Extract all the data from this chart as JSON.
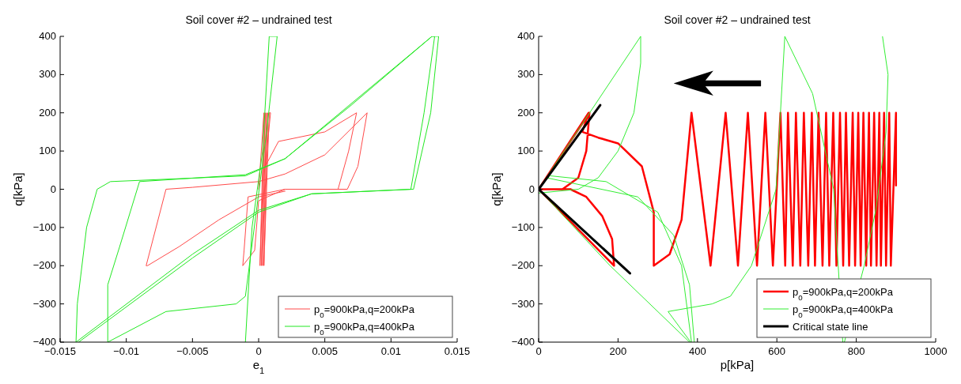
{
  "chart_data": [
    {
      "type": "line",
      "title": "Soil cover #2 – undrained test",
      "xlabel": "e$_{1}$",
      "ylabel": "q[kPa]",
      "xlim": [
        -0.015,
        0.015
      ],
      "ylim": [
        -400,
        400
      ],
      "xticks": [
        {
          "value": -0.015,
          "label": "−0.015"
        },
        {
          "value": -0.01,
          "label": "−0.01"
        },
        {
          "value": -0.005,
          "label": "−0.005"
        },
        0,
        0.005,
        0.01,
        0.015
      ],
      "yticks": [
        {
          "value": -400,
          "label": "−400"
        },
        {
          "value": -300,
          "label": "−300"
        },
        {
          "value": -200,
          "label": "−200"
        },
        {
          "value": -100,
          "label": "−100"
        },
        0,
        100,
        200,
        300,
        400
      ],
      "legend": "bottom right",
      "series": [
        {
          "name": "p$_{0}$=900kPa,q=200kPa",
          "color": "#ff4a4a",
          "x": [
            0,
            0.0004,
            0.0001,
            0.0005,
            0.0002,
            0.0006,
            0.0003,
            0.0007,
            0.0004,
            0.0008,
            0.0009,
            0.0005,
            0.0015,
            0.005,
            0.0074,
            0.0068,
            0.006,
            0.002,
            -0.0008,
            -0.0011,
            -0.0012,
            -0.0003,
            0,
            0.002,
            0.0067,
            0.0075,
            0.0082,
            0.005,
            0.002,
            0,
            -0.005,
            -0.007,
            -0.0085,
            -0.0084,
            -0.006,
            -0.003,
            0,
            0.002
          ],
          "values": [
            0,
            200,
            -200,
            200,
            -200,
            200,
            -200,
            200,
            -200,
            200,
            200,
            60,
            125,
            150,
            200,
            100,
            0,
            0,
            -20,
            -160,
            -200,
            -160,
            -30,
            0,
            0,
            60,
            200,
            90,
            40,
            20,
            5,
            0,
            -200,
            -200,
            -150,
            -80,
            -20,
            -5
          ]
        },
        {
          "name": "p$_{0}$=900kPa,q=400kPa",
          "color": "#22e822",
          "x": [
            -0.001,
            -0.0005,
            0.0003,
            0.0008,
            0.0014,
            0.0006,
            -0.001,
            -0.0017,
            -0.007,
            -0.0114,
            -0.0114,
            -0.0105,
            -0.009,
            -0.001,
            0.002,
            0.007,
            0.0131,
            0.0133,
            0.0125,
            0.0115,
            0.004,
            0,
            -0.005,
            -0.0138,
            -0.0137,
            -0.013,
            -0.0122,
            -0.0112,
            -0.001,
            0.002,
            0.0131,
            0.0136,
            0.013,
            0.0117,
            0.004,
            0,
            -0.005,
            -0.0136
          ],
          "values": [
            -400,
            -100,
            100,
            400,
            400,
            150,
            -280,
            -300,
            -320,
            -400,
            -250,
            -150,
            20,
            38,
            80,
            220,
            400,
            400,
            200,
            0,
            -12,
            -55,
            -170,
            -400,
            -300,
            -100,
            0,
            20,
            35,
            80,
            400,
            400,
            200,
            0,
            -12,
            -60,
            -180,
            -400
          ]
        }
      ]
    },
    {
      "type": "line",
      "title": "Soil cover #2 – undrained test",
      "xlabel": "p[kPa]",
      "ylabel": "q[kPa]",
      "xlim": [
        0,
        1000
      ],
      "ylim": [
        -400,
        400
      ],
      "xticks": [
        0,
        200,
        400,
        600,
        800,
        1000
      ],
      "yticks": [
        {
          "value": -400,
          "label": "−400"
        },
        {
          "value": -300,
          "label": "−300"
        },
        {
          "value": -200,
          "label": "−200"
        },
        {
          "value": -100,
          "label": "−100"
        },
        0,
        100,
        200,
        300,
        400
      ],
      "legend": "bottom right",
      "series": [
        {
          "name": "p$_{0}$=900kPa,q=200kPa",
          "color": "#ff0000",
          "x": [
            900,
            900,
            887,
            883,
            875,
            870,
            862,
            858,
            851,
            845,
            837,
            832,
            825,
            818,
            811,
            805,
            797,
            791,
            782,
            774,
            767,
            759,
            750,
            742,
            732,
            724,
            715,
            705,
            696,
            688,
            679,
            668,
            659,
            648,
            640,
            628,
            621,
            609,
            590,
            571,
            550,
            527,
            502,
            471,
            433,
            385,
            360,
            330,
            290,
            290,
            260,
            200,
            150,
            110,
            126,
            0,
            190,
            185,
            160,
            120,
            80,
            0,
            60,
            100,
            120,
            128,
            0
          ],
          "values": [
            10,
            200,
            -200,
            200,
            -200,
            200,
            -200,
            200,
            -200,
            200,
            -200,
            200,
            -200,
            200,
            -200,
            200,
            -200,
            200,
            -200,
            200,
            -200,
            200,
            -200,
            200,
            -200,
            200,
            -200,
            200,
            -200,
            200,
            -200,
            200,
            -200,
            200,
            -200,
            200,
            -200,
            200,
            -200,
            200,
            -200,
            200,
            -200,
            200,
            -200,
            200,
            -80,
            -170,
            -200,
            -60,
            60,
            120,
            135,
            150,
            200,
            0,
            -200,
            -130,
            -70,
            -20,
            0,
            0,
            0,
            30,
            100,
            200,
            0
          ]
        },
        {
          "name": "p$_{0}$=900kPa,q=400kPa",
          "color": "#33ee33",
          "x": [
            0,
            257,
            257,
            240,
            200,
            150,
            100,
            0,
            null,
            0,
            180,
            380,
            null,
            30,
            170,
            300,
            360,
            385,
            null,
            20,
            250,
            340,
            380,
            392,
            null,
            383,
            326,
            437,
            483,
            536,
            598,
            620,
            690,
            743,
            766,
            null,
            770,
            820,
            850,
            875,
            880,
            866
          ],
          "values": [
            0,
            400,
            330,
            200,
            100,
            30,
            0,
            -10,
            null,
            0,
            -200,
            -400,
            null,
            35,
            20,
            -60,
            -200,
            -400,
            null,
            30,
            -20,
            -120,
            -250,
            -400,
            null,
            -400,
            -320,
            -300,
            -280,
            -200,
            0,
            400,
            250,
            0,
            -400,
            null,
            -400,
            -200,
            -50,
            150,
            300,
            400
          ]
        },
        {
          "name": "Critical state line",
          "color": "#000000",
          "x": [
            155,
            0,
            230
          ],
          "values": [
            220,
            0,
            -220
          ]
        }
      ]
    }
  ]
}
